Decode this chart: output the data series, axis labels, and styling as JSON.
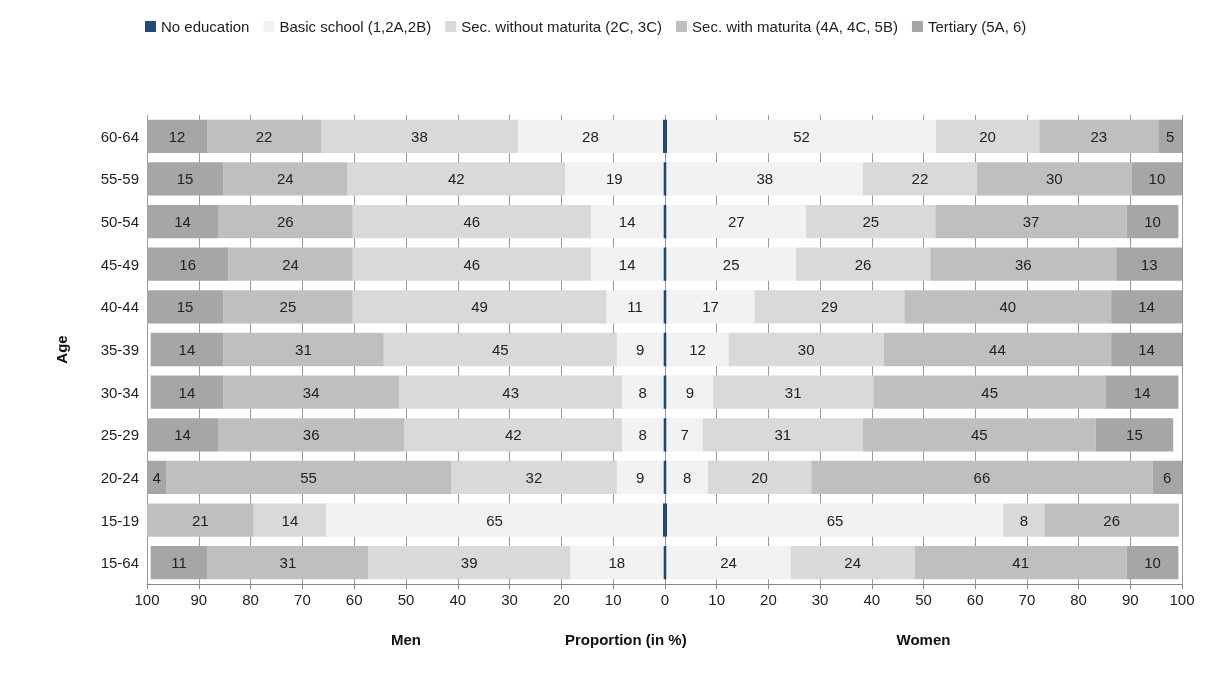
{
  "chart_data": [
    {
      "type": "bar",
      "orientation": "horizontal",
      "stacked": true,
      "ylabel": "Age",
      "xlabel": "Men",
      "annotations": [
        "Proportion (in %)"
      ],
      "categories": [
        "60-64",
        "55-59",
        "50-54",
        "45-49",
        "40-44",
        "35-39",
        "30-34",
        "25-29",
        "20-24",
        "15-19",
        "15-64"
      ],
      "xlim": [
        100,
        0
      ],
      "xticks": [
        100,
        90,
        80,
        70,
        60,
        50,
        40,
        30,
        20,
        10,
        0
      ],
      "grid": "x",
      "legend": "top",
      "series": [
        {
          "name": "No education",
          "color": "#1f497d",
          "values": [
            0.4,
            0.3,
            0.3,
            0.3,
            0.3,
            0.3,
            0.3,
            0.3,
            0.3,
            0.4,
            0.3
          ],
          "value_labels": [
            null,
            null,
            null,
            null,
            null,
            null,
            null,
            null,
            null,
            null,
            null
          ]
        },
        {
          "name": "Basic school (1,2A,2B)",
          "color": "#f2f2f2",
          "values": [
            28,
            19,
            14,
            14,
            11,
            9,
            8,
            8,
            9,
            65,
            18
          ],
          "value_labels": [
            "28",
            "19",
            "14",
            "14",
            "11",
            "9",
            "8",
            "8",
            "9",
            "65",
            "18"
          ]
        },
        {
          "name": "Sec. without maturita (2C, 3C)",
          "color": "#d9d9d9",
          "values": [
            38,
            42,
            46,
            46,
            49,
            45,
            43,
            42,
            32,
            14,
            39
          ],
          "value_labels": [
            "38",
            "42",
            "46",
            "46",
            "49",
            "45",
            "43",
            "42",
            "32",
            "14",
            "39"
          ]
        },
        {
          "name": "Sec. with maturita (4A, 4C, 5B)",
          "color": "#bfbfbf",
          "values": [
            22,
            24,
            26,
            24,
            25,
            31,
            34,
            36,
            55,
            21,
            31
          ],
          "value_labels": [
            "22",
            "24",
            "26",
            "24",
            "25",
            "31",
            "34",
            "36",
            "55",
            "21",
            "31"
          ]
        },
        {
          "name": "Tertiary (5A, 6)",
          "color": "#a6a6a6",
          "values": [
            12,
            15,
            14,
            16,
            15,
            14,
            14,
            14,
            4,
            null,
            11
          ],
          "value_labels": [
            "12",
            "15",
            "14",
            "16",
            "15",
            "14",
            "14",
            "14",
            "4",
            null,
            "11"
          ]
        }
      ]
    },
    {
      "type": "bar",
      "orientation": "horizontal",
      "stacked": true,
      "xlabel": "Women",
      "tick_labels": "x",
      "categories": [
        null,
        null,
        null,
        null,
        null,
        null,
        null,
        null,
        null,
        null,
        null
      ],
      "xlim": [
        0,
        100
      ],
      "xticks": [
        10,
        20,
        30,
        40,
        50,
        60,
        70,
        80,
        90,
        100
      ],
      "grid": "x",
      "series": [
        {
          "color": "#1f497d",
          "values": [
            0.4,
            0.3,
            0.3,
            0.3,
            0.3,
            0.3,
            0.3,
            0.3,
            0.3,
            0.4,
            0.3
          ],
          "value_labels": [
            null,
            null,
            null,
            null,
            null,
            null,
            null,
            null,
            null,
            null,
            null
          ]
        },
        {
          "color": "#f2f2f2",
          "values": [
            52,
            38,
            27,
            25,
            17,
            12,
            9,
            7,
            8,
            65,
            24
          ],
          "value_labels": [
            "52",
            "38",
            "27",
            "25",
            "17",
            "12",
            "9",
            "7",
            "8",
            "65",
            "24"
          ]
        },
        {
          "color": "#d9d9d9",
          "values": [
            20,
            22,
            25,
            26,
            29,
            30,
            31,
            31,
            20,
            8,
            24
          ],
          "value_labels": [
            "20",
            "22",
            "25",
            "26",
            "29",
            "30",
            "31",
            "31",
            "20",
            "8",
            "24"
          ]
        },
        {
          "color": "#bfbfbf",
          "values": [
            23,
            30,
            37,
            36,
            40,
            44,
            45,
            45,
            66,
            26,
            41
          ],
          "value_labels": [
            "23",
            "30",
            "37",
            "36",
            "40",
            "44",
            "45",
            "45",
            "66",
            "26",
            "41"
          ]
        },
        {
          "color": "#a6a6a6",
          "values": [
            5,
            10,
            10,
            13,
            14,
            14,
            14,
            15,
            6,
            null,
            10
          ],
          "value_labels": [
            "5",
            "10",
            "10",
            "13",
            "14",
            "14",
            "14",
            "15",
            "6",
            null,
            "10"
          ]
        }
      ]
    }
  ]
}
